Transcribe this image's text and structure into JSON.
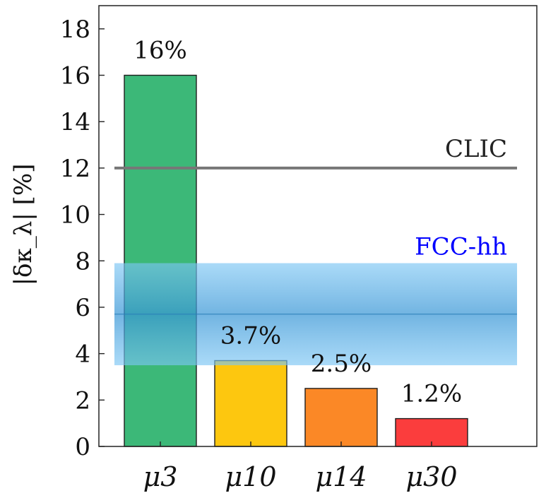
{
  "chart_data": {
    "type": "bar",
    "categories": [
      "μ3",
      "μ10",
      "μ14",
      "μ30"
    ],
    "values": [
      16,
      3.7,
      2.5,
      1.2
    ],
    "value_labels": [
      "16%",
      "3.7%",
      "2.5%",
      "1.2%"
    ],
    "bar_colors": [
      "#3cb878",
      "#fdc70f",
      "#fb8826",
      "#fb3d3d"
    ],
    "ylabel": "|δκ_λ| [%]",
    "xlabel": "",
    "title": "",
    "ylim": [
      0,
      19
    ],
    "yticks": [
      0,
      2,
      4,
      6,
      8,
      10,
      12,
      14,
      16,
      18
    ],
    "ytick_labels": [
      "0",
      "2",
      "4",
      "6",
      "8",
      "10",
      "12",
      "14",
      "16",
      "18"
    ],
    "reference_lines": [
      {
        "name": "CLIC",
        "value": 12,
        "color": "#777777"
      }
    ],
    "reference_bands": [
      {
        "name": "FCC-hh",
        "center": 5.7,
        "low": 3.5,
        "high": 7.9,
        "color": "#4ab4ee",
        "label_color": "#0000ff"
      }
    ]
  }
}
